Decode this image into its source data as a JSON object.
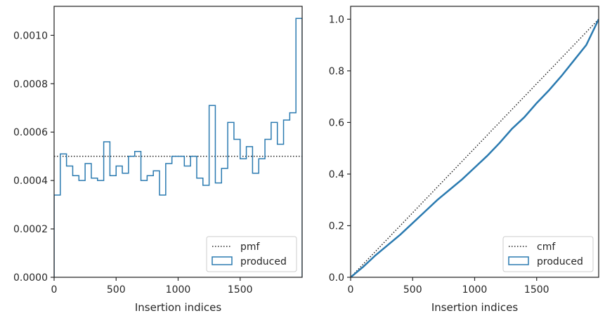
{
  "colors": {
    "produced": "#2a7ab0",
    "reference": "#222222",
    "axes": "#262626",
    "legend_border": "#cccccc"
  },
  "chart_data": [
    {
      "type": "step",
      "xlabel": "Insertion indices",
      "ylabel": "",
      "xlim": [
        0,
        2000
      ],
      "ylim": [
        0,
        0.00112
      ],
      "xticks": [
        0,
        500,
        1000,
        1500
      ],
      "xtick_labels": [
        "0",
        "500",
        "1000",
        "1500"
      ],
      "yticks": [
        0,
        0.0002,
        0.0004,
        0.0006,
        0.0008,
        0.001
      ],
      "ytick_labels": [
        "0.0000",
        "0.0002",
        "0.0004",
        "0.0006",
        "0.0008",
        "0.0010"
      ],
      "legend_placement": "lower-right",
      "grid": false,
      "reference": {
        "name": "pmf",
        "style": "dotted",
        "y": 0.0005
      },
      "series": [
        {
          "name": "produced",
          "style": "step",
          "bin_width": 50,
          "x_start": 0,
          "values": [
            0.00034,
            0.00051,
            0.00046,
            0.00042,
            0.0004,
            0.00047,
            0.00041,
            0.0004,
            0.00056,
            0.00042,
            0.00046,
            0.00043,
            0.0005,
            0.00052,
            0.0004,
            0.00042,
            0.00044,
            0.00034,
            0.00047,
            0.0005,
            0.0005,
            0.00046,
            0.0005,
            0.00041,
            0.00038,
            0.00071,
            0.00039,
            0.00045,
            0.00064,
            0.00057,
            0.00049,
            0.00054,
            0.00043,
            0.00049,
            0.00057,
            0.00064,
            0.00055,
            0.00065,
            0.00068,
            0.00107
          ]
        }
      ]
    },
    {
      "type": "line",
      "xlabel": "Insertion indices",
      "ylabel": "",
      "xlim": [
        0,
        2000
      ],
      "ylim": [
        0,
        1.05
      ],
      "xticks": [
        0,
        500,
        1000,
        1500
      ],
      "xtick_labels": [
        "0",
        "500",
        "1000",
        "1500"
      ],
      "yticks": [
        0,
        0.2,
        0.4,
        0.6,
        0.8,
        1.0
      ],
      "ytick_labels": [
        "0.0",
        "0.2",
        "0.4",
        "0.6",
        "0.8",
        "1.0"
      ],
      "legend_placement": "lower-right",
      "grid": false,
      "reference": {
        "name": "cmf",
        "style": "dotted",
        "from": [
          0,
          0
        ],
        "to": [
          2000,
          1.0
        ]
      },
      "series": [
        {
          "name": "produced",
          "style": "line",
          "x": [
            0,
            100,
            200,
            300,
            400,
            500,
            600,
            700,
            800,
            900,
            1000,
            1100,
            1200,
            1300,
            1400,
            1500,
            1600,
            1700,
            1800,
            1900,
            2000
          ],
          "y": [
            0,
            0.04,
            0.085,
            0.125,
            0.165,
            0.21,
            0.255,
            0.3,
            0.34,
            0.38,
            0.425,
            0.47,
            0.52,
            0.575,
            0.62,
            0.675,
            0.725,
            0.78,
            0.84,
            0.9,
            1.0
          ]
        }
      ]
    }
  ]
}
